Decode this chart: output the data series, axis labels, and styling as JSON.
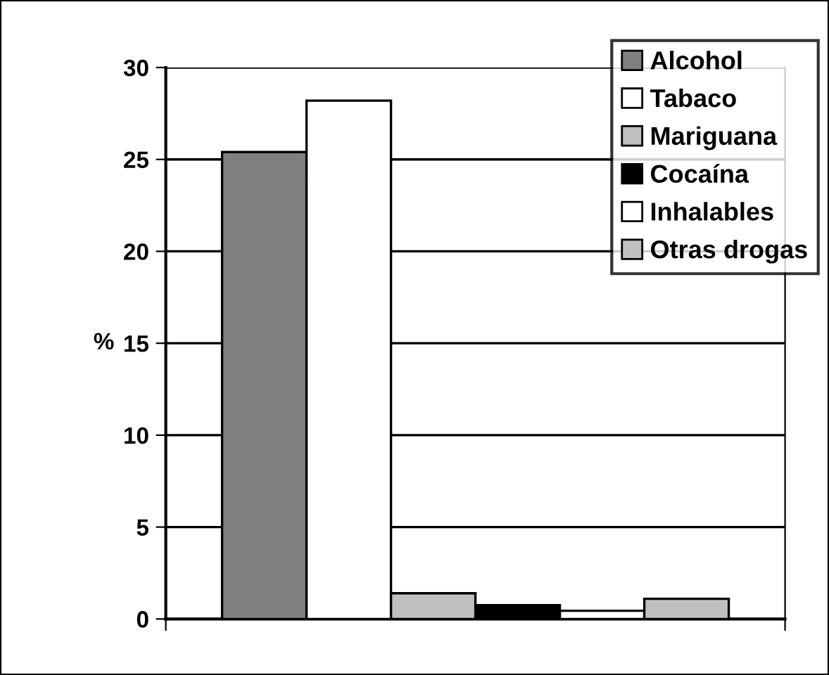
{
  "chart_data": {
    "type": "bar",
    "ylabel": "%",
    "categories": [
      null
    ],
    "series": [
      {
        "name": "Alcohol",
        "color": "#808080",
        "values": [
          25.4
        ]
      },
      {
        "name": "Tabaco",
        "color": "#ffffff",
        "values": [
          28.2
        ]
      },
      {
        "name": "Mariguana",
        "color": "#c0c0c0",
        "values": [
          1.4
        ]
      },
      {
        "name": "Cocaína",
        "color": "#000000",
        "values": [
          0.75
        ]
      },
      {
        "name": "Inhalables",
        "color": "#ffffff",
        "values": [
          0.45
        ]
      },
      {
        "name": "Otras drogas",
        "color": "#c0c0c0",
        "values": [
          1.1
        ]
      }
    ],
    "ylim": [
      0,
      30
    ],
    "yticks": [
      0,
      5,
      10,
      15,
      20,
      25,
      30
    ],
    "grid": "y",
    "legend": "top right"
  }
}
